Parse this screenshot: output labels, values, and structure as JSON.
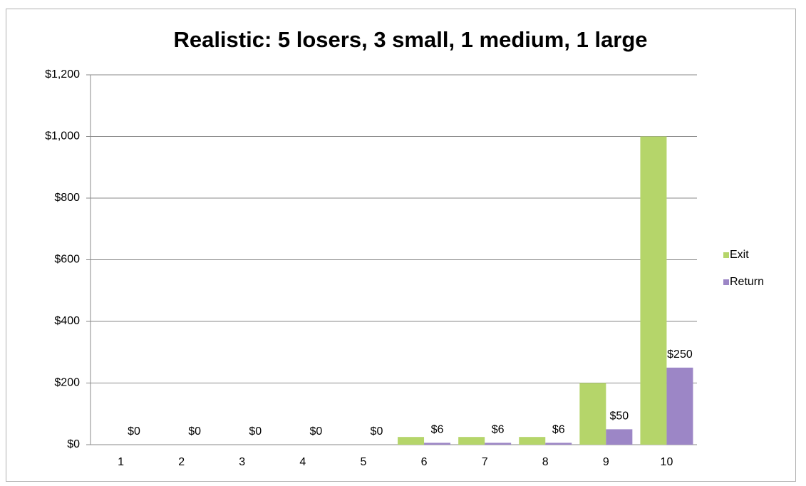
{
  "chart_data": {
    "type": "bar",
    "title": "Realistic: 5 losers, 3 small, 1 medium, 1 large",
    "categories": [
      "1",
      "2",
      "3",
      "4",
      "5",
      "6",
      "7",
      "8",
      "9",
      "10"
    ],
    "series": [
      {
        "name": "Exit",
        "color": "#b5d56a",
        "values": [
          0,
          0,
          0,
          0,
          0,
          25,
          25,
          25,
          200,
          1000
        ]
      },
      {
        "name": "Return",
        "color": "#9c86c6",
        "values": [
          0,
          0,
          0,
          0,
          0,
          6,
          6,
          6,
          50,
          250
        ],
        "value_labels": [
          "$0",
          "$0",
          "$0",
          "$0",
          "$0",
          "$6",
          "$6",
          "$6",
          "$50",
          "$250"
        ]
      }
    ],
    "ylim": [
      0,
      1200
    ],
    "yticks": [
      {
        "value": 0,
        "label": "$0"
      },
      {
        "value": 200,
        "label": "$200"
      },
      {
        "value": 400,
        "label": "$400"
      },
      {
        "value": 600,
        "label": "$600"
      },
      {
        "value": 800,
        "label": "$800"
      },
      {
        "value": 1000,
        "label": "$1,000"
      },
      {
        "value": 1200,
        "label": "$1,200"
      }
    ],
    "grid": true,
    "legend": "right"
  }
}
